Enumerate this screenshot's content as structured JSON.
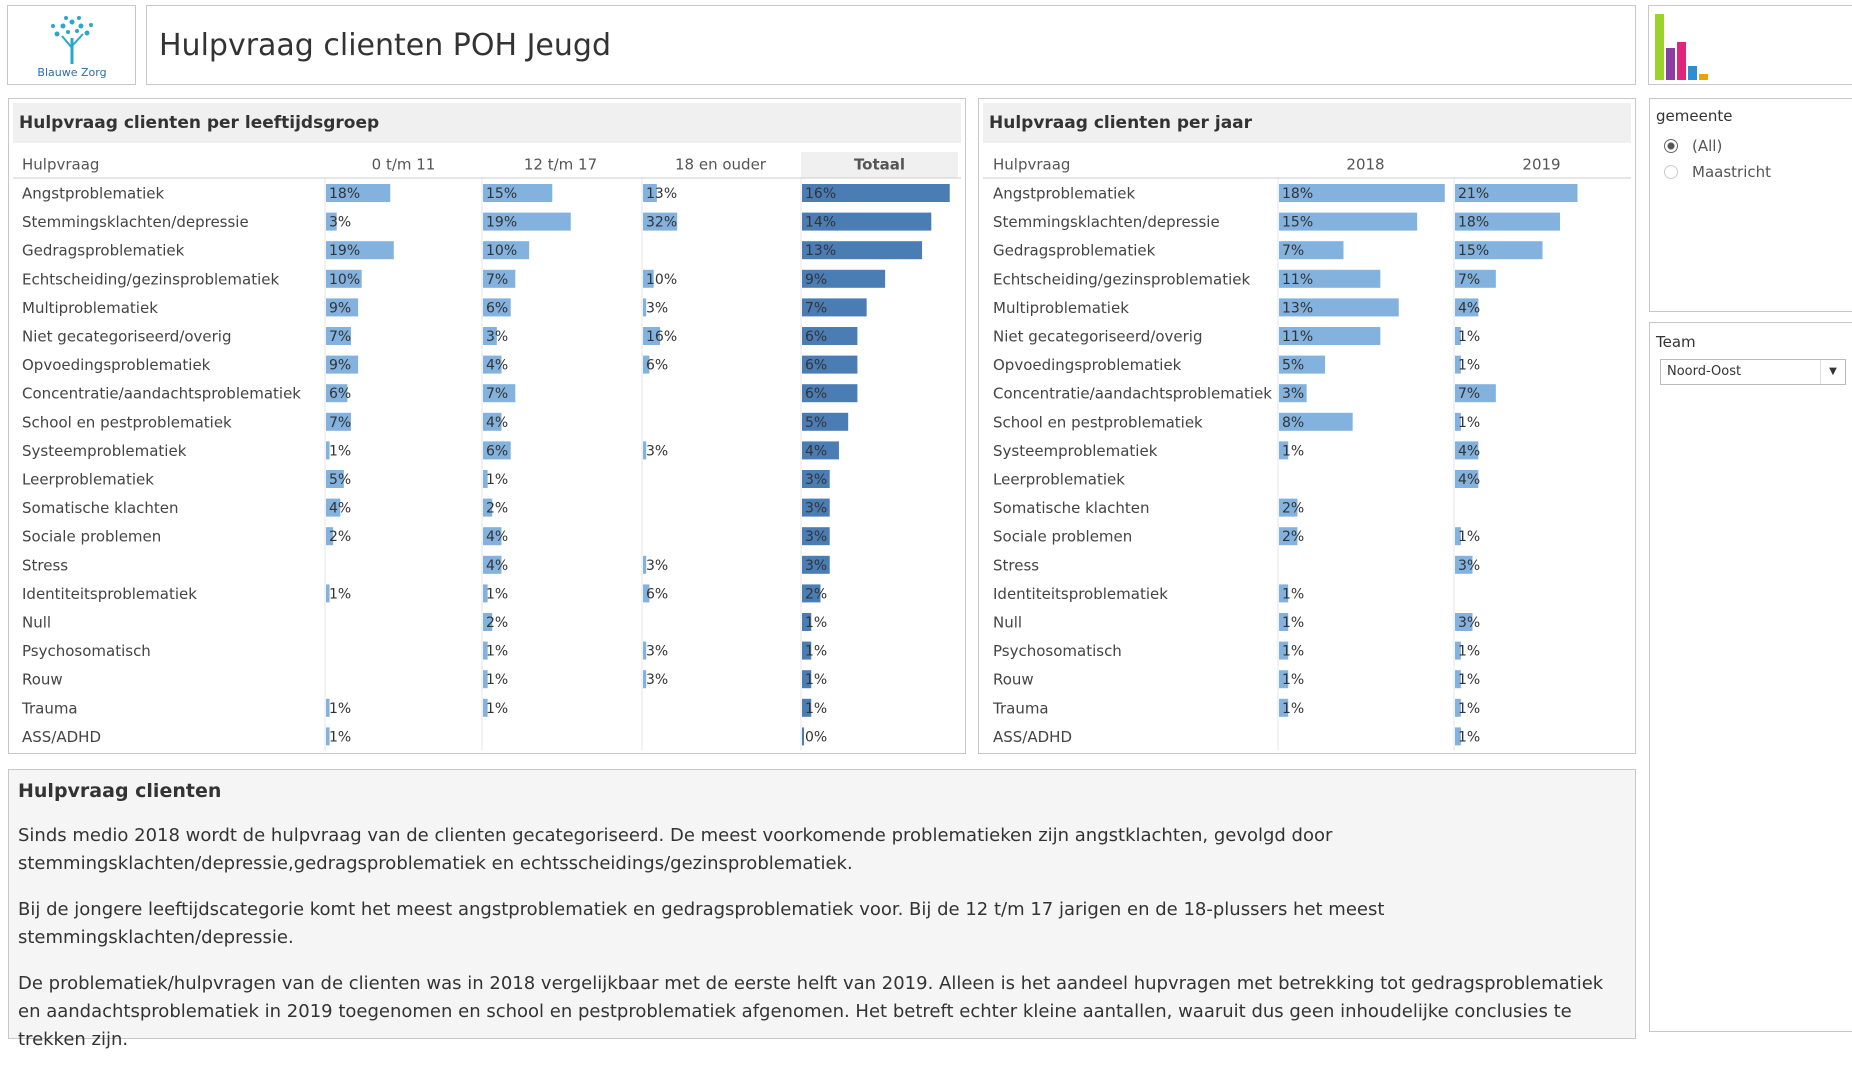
{
  "header": {
    "logo_text": "Blauwe Zorg",
    "title": "Hulpvraag clienten POH Jeugd"
  },
  "chart_data": [
    {
      "type": "bar-table",
      "title": "Hulpvraag clienten per leeftijdsgroep",
      "row_header": "Hulpvraag",
      "categories": [
        "Angstproblematiek",
        "Stemmingsklachten/depressie",
        "Gedragsproblematiek",
        "Echtscheiding/gezinsproblematiek",
        "Multiproblematiek",
        "Niet gecategoriseerd/overig",
        "Opvoedingsproblematiek",
        "Concentratie/aandachtsproblematiek",
        "School en pestproblematiek",
        "Systeemproblematiek",
        "Leerproblematiek",
        "Somatische klachten",
        "Sociale problemen",
        "Stress",
        "Identiteitsproblematiek",
        "Null",
        "Psychosomatisch",
        "Rouw",
        "Trauma",
        "ASS/ADHD"
      ],
      "series": [
        {
          "name": "0 t/m 11",
          "color": "#82b2dd",
          "xlim": [
            0,
            44
          ],
          "values": [
            18,
            3,
            19,
            10,
            9,
            7,
            9,
            6,
            7,
            1,
            5,
            4,
            2,
            null,
            1,
            null,
            null,
            null,
            1,
            1
          ],
          "value_labels": [
            "18%",
            "3%",
            "19%",
            "10%",
            "9%",
            "7%",
            "9%",
            "6%",
            "7%",
            "1%",
            "5%",
            "4%",
            "2%",
            null,
            "1%",
            null,
            null,
            null,
            "1%",
            "1%"
          ]
        },
        {
          "name": "12 t/m 17",
          "color": "#82b2dd",
          "xlim": [
            0,
            34
          ],
          "values": [
            15,
            19,
            10,
            7,
            6,
            3,
            4,
            7,
            4,
            6,
            1,
            2,
            4,
            4,
            1,
            2,
            1,
            1,
            1,
            null
          ],
          "value_labels": [
            "15%",
            "19%",
            "10%",
            "7%",
            "6%",
            "3%",
            "4%",
            "7%",
            "4%",
            "6%",
            "1%",
            "2%",
            "4%",
            "4%",
            "1%",
            "2%",
            "1%",
            "1%",
            "1%",
            null
          ]
        },
        {
          "name": "18 en ouder",
          "color": "#82b2dd",
          "xlim": [
            0,
            147
          ],
          "values": [
            13,
            32,
            null,
            10,
            3,
            16,
            6,
            null,
            null,
            3,
            null,
            null,
            null,
            3,
            6,
            null,
            3,
            3,
            null,
            null
          ],
          "value_labels": [
            "13%",
            "32%",
            null,
            "10%",
            "3%",
            "16%",
            "6%",
            null,
            null,
            "3%",
            null,
            null,
            null,
            "3%",
            "6%",
            null,
            "3%",
            "3%",
            null,
            null
          ]
        },
        {
          "name": "Totaal",
          "color": "#4b7db5",
          "xlim": [
            0,
            17
          ],
          "values": [
            16,
            14,
            13,
            9,
            7,
            6,
            6,
            6,
            5,
            4,
            3,
            3,
            3,
            3,
            2,
            1,
            1,
            1,
            1,
            0
          ],
          "value_labels": [
            "16%",
            "14%",
            "13%",
            "9%",
            "7%",
            "6%",
            "6%",
            "6%",
            "5%",
            "4%",
            "3%",
            "3%",
            "3%",
            "3%",
            "2%",
            "1%",
            "1%",
            "1%",
            "1%",
            "0%"
          ]
        }
      ]
    },
    {
      "type": "bar-table",
      "title": "Hulpvraag clienten per jaar",
      "row_header": "Hulpvraag",
      "categories": [
        "Angstproblematiek",
        "Stemmingsklachten/depressie",
        "Gedragsproblematiek",
        "Echtscheiding/gezinsproblematiek",
        "Multiproblematiek",
        "Niet gecategoriseerd/overig",
        "Opvoedingsproblematiek",
        "Concentratie/aandachtsproblematiek",
        "School en pestproblematiek",
        "Systeemproblematiek",
        "Leerproblematiek",
        "Somatische klachten",
        "Sociale problemen",
        "Stress",
        "Identiteitsproblematiek",
        "Null",
        "Psychosomatisch",
        "Rouw",
        "Trauma",
        "ASS/ADHD"
      ],
      "series": [
        {
          "name": "2018",
          "color": "#82b2dd",
          "xlim": [
            0,
            19
          ],
          "values": [
            18,
            15,
            7,
            11,
            13,
            11,
            5,
            3,
            8,
            1,
            null,
            2,
            2,
            null,
            1,
            1,
            1,
            1,
            1,
            null
          ],
          "value_labels": [
            "18%",
            "15%",
            "7%",
            "11%",
            "13%",
            "11%",
            "5%",
            "3%",
            "8%",
            "1%",
            null,
            "2%",
            "2%",
            null,
            "1%",
            "1%",
            "1%",
            "1%",
            "1%",
            null
          ]
        },
        {
          "name": "2019",
          "color": "#82b2dd",
          "xlim": [
            0,
            30
          ],
          "values": [
            21,
            18,
            15,
            7,
            4,
            1,
            1,
            7,
            1,
            4,
            4,
            null,
            1,
            3,
            null,
            3,
            1,
            1,
            1,
            1
          ],
          "value_labels": [
            "21%",
            "18%",
            "15%",
            "7%",
            "4%",
            "1%",
            "1%",
            "7%",
            "1%",
            "4%",
            "4%",
            null,
            "1%",
            "3%",
            null,
            "3%",
            "1%",
            "1%",
            "1%",
            "1%"
          ]
        }
      ]
    }
  ],
  "filters": {
    "gemeente": {
      "label": "gemeente",
      "options": [
        "(All)",
        "Maastricht"
      ],
      "selected_index": 0
    },
    "team": {
      "label": "Team",
      "value": "Noord-Oost"
    }
  },
  "text_panel": {
    "title": "Hulpvraag clienten",
    "paragraphs": [
      "Sinds medio 2018 wordt de hulpvraag van de clienten gecategoriseerd. De meest voorkomende problematieken zijn angstklachten, gevolgd door stemmingsklachten/depressie,gedragsproblematiek en echtsscheidings/gezinsproblematiek.",
      "Bij de jongere leeftijdscategorie komt het meest angstproblematiek en gedragsproblematiek voor. Bij de 12 t/m 17 jarigen en de 18-plussers het meest stemmingsklachten/depressie.",
      "De problematiek/hulpvragen van de clienten was in 2018 vergelijkbaar met de eerste helft van 2019. Alleen is het aandeel hupvragen met betrekking tot gedragsproblematiek en aandachtsproblematiek in 2019 toegenomen en school en pestproblematiek afgenomen. Het betreft echter kleine aantallen, waaruit dus geen inhoudelijke conclusies te trekken zijn."
    ]
  }
}
